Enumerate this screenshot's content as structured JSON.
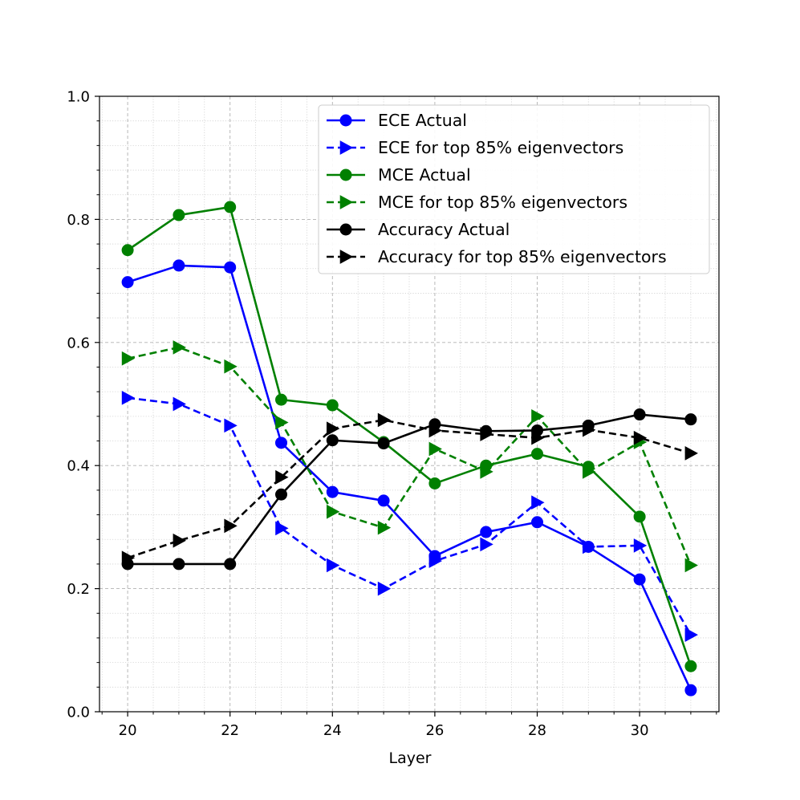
{
  "chart_data": {
    "type": "line",
    "title": "",
    "xlabel": "Layer",
    "ylabel": "",
    "xlim": [
      19.45,
      31.55
    ],
    "ylim": [
      0.0,
      1.0
    ],
    "xticks": [
      20,
      22,
      24,
      26,
      28,
      30
    ],
    "xtick_labels": [
      "20",
      "22",
      "24",
      "26",
      "28",
      "30"
    ],
    "yticks": [
      0.0,
      0.2,
      0.4,
      0.6,
      0.8,
      1.0
    ],
    "ytick_labels": [
      "0.0",
      "0.2",
      "0.4",
      "0.6",
      "0.8",
      "1.0"
    ],
    "grid": "major dashed, minor dotted",
    "legend_position": "top-right",
    "x": [
      20,
      21,
      22,
      23,
      24,
      25,
      26,
      27,
      28,
      29,
      30,
      31
    ],
    "series": [
      {
        "name": "ECE Actual",
        "color": "#0000ff",
        "style": "solid",
        "marker": "circle",
        "values": [
          0.698,
          0.725,
          0.722,
          0.437,
          0.357,
          0.343,
          0.253,
          0.292,
          0.308,
          0.268,
          0.215,
          0.035
        ]
      },
      {
        "name": "ECE for top 85% eigenvectors",
        "color": "#0000ff",
        "style": "dashed",
        "marker": "triangle-right",
        "values": [
          0.51,
          0.5,
          0.465,
          0.298,
          0.238,
          0.2,
          0.245,
          0.272,
          0.34,
          0.268,
          0.27,
          0.125
        ]
      },
      {
        "name": "MCE Actual",
        "color": "#008000",
        "style": "solid",
        "marker": "circle",
        "values": [
          0.75,
          0.807,
          0.82,
          0.507,
          0.498,
          0.438,
          0.371,
          0.4,
          0.419,
          0.398,
          0.317,
          0.074
        ]
      },
      {
        "name": "MCE for top 85% eigenvectors",
        "color": "#008000",
        "style": "dashed",
        "marker": "triangle-right",
        "values": [
          0.574,
          0.592,
          0.561,
          0.47,
          0.325,
          0.299,
          0.427,
          0.39,
          0.48,
          0.39,
          0.438,
          0.238
        ]
      },
      {
        "name": "Accuracy Actual",
        "color": "#000000",
        "style": "solid",
        "marker": "circle",
        "values": [
          0.24,
          0.24,
          0.24,
          0.353,
          0.441,
          0.436,
          0.467,
          0.456,
          0.457,
          0.465,
          0.483,
          0.475
        ]
      },
      {
        "name": "Accuracy for top 85% eigenvectors",
        "color": "#000000",
        "style": "dashed",
        "marker": "triangle-right",
        "values": [
          0.25,
          0.278,
          0.302,
          0.381,
          0.46,
          0.474,
          0.457,
          0.451,
          0.445,
          0.458,
          0.445,
          0.42
        ]
      }
    ]
  }
}
